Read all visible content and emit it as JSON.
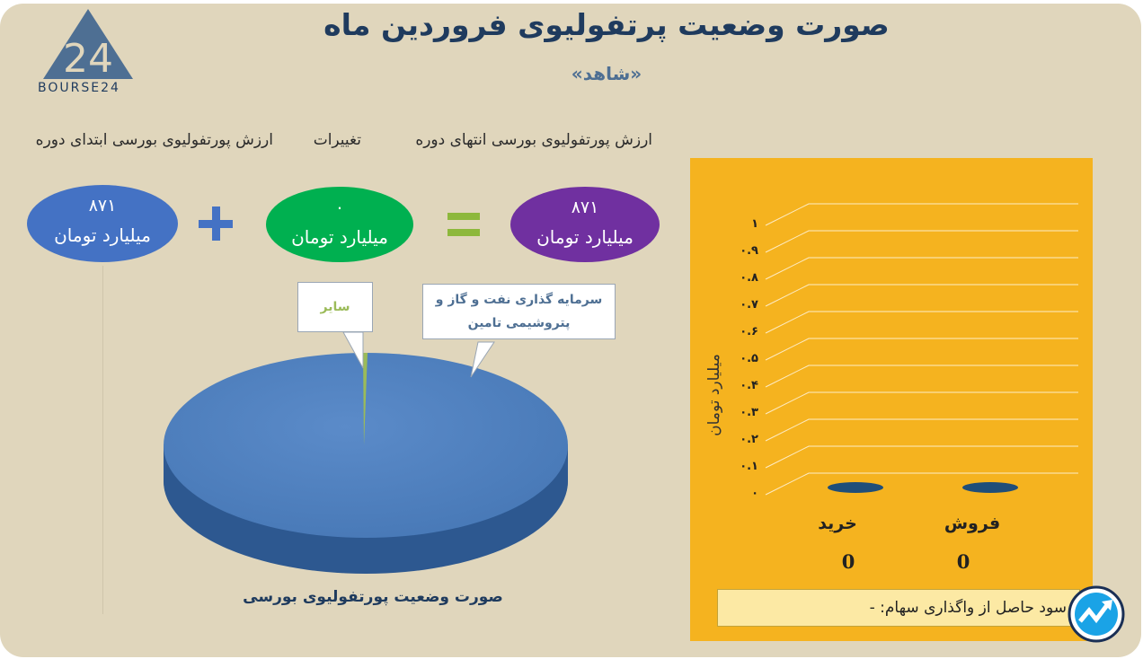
{
  "header": {
    "title": "صورت وضعیت پرتفولیوی فروردین ماه",
    "subtitle": "«شاهد»",
    "logo_text": "BOURSE24",
    "logo_mark": "24"
  },
  "columns": {
    "end_value": "ارزش پورتفولیوی بورسی انتهای دوره",
    "changes": "تغییرات",
    "start_value": "ارزش پورتفولیوی بورسی ابتدای دوره"
  },
  "values": {
    "end": {
      "value": "۸۷۱",
      "unit": "میلیارد تومان",
      "color": "#7030a0"
    },
    "change": {
      "value": "۰",
      "unit": "میلیارد تومان",
      "color": "#00b050"
    },
    "start": {
      "value": "۸۷۱",
      "unit": "میلیارد تومان",
      "color": "#4472c4"
    },
    "equals_color": "#8db83c",
    "plus_color": "#4472c4"
  },
  "pie": {
    "caption": "صورت وضعیت پورتفولیوی بورسی",
    "callout_main": "سرمایه گذاری نفت و گاز و پتروشیمی تامین",
    "callout_other": "سایر"
  },
  "bar": {
    "footer_label": "سود حاصل از واگذاری سهام: -",
    "bg_color": "#f5b31f"
  },
  "chart_data": [
    {
      "type": "pie",
      "title": "صورت وضعیت پورتفولیوی بورسی",
      "labels": [
        "سرمایه گذاری نفت و گاز و پتروشیمی تامین",
        "سایر"
      ],
      "values": [
        99.5,
        0.5
      ],
      "colors": [
        "#4f81bd",
        "#9bbb59"
      ]
    },
    {
      "type": "bar",
      "categories": [
        "خرید",
        "فروش"
      ],
      "values": [
        0,
        0
      ],
      "data_labels": [
        "0",
        "0"
      ],
      "ylabel": "میلیارد تومان",
      "ylim": [
        0,
        1
      ],
      "yticks": [
        "۰",
        "۰.۱",
        "۰.۲",
        "۰.۳",
        "۰.۴",
        "۰.۵",
        "۰.۶",
        "۰.۷",
        "۰.۸",
        "۰.۹",
        "۱"
      ],
      "grid": true,
      "legend": "none"
    }
  ]
}
